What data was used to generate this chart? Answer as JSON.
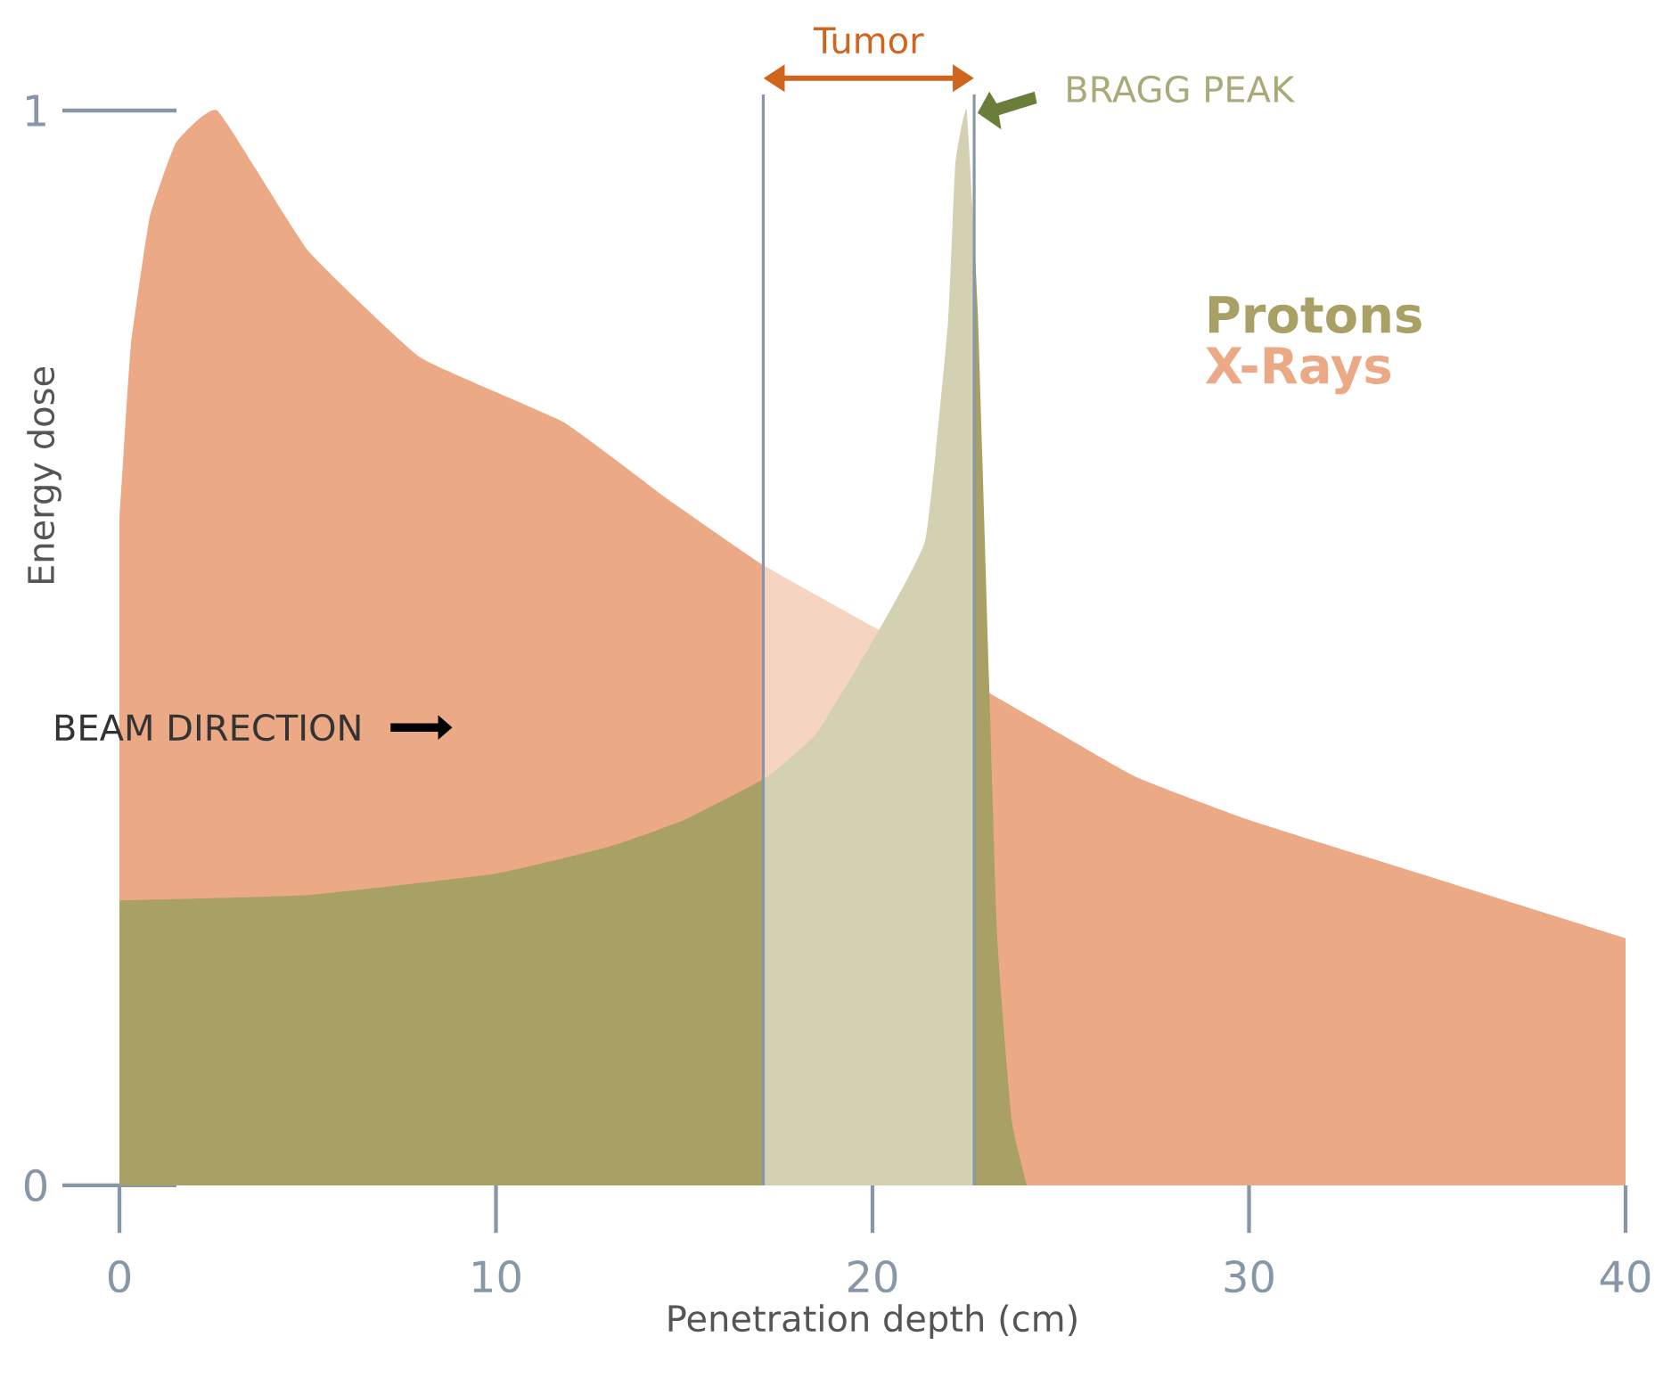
{
  "chart_data": {
    "type": "area",
    "xlabel": "Penetration depth (cm)",
    "ylabel": "Energy dose",
    "xlim": [
      0,
      40
    ],
    "xticks": [
      0,
      10,
      20,
      30,
      40
    ],
    "ylim": [
      0,
      1
    ],
    "yticks": [
      0,
      1
    ],
    "grid": false,
    "legend": "right",
    "series": [
      {
        "name": "X-Rays",
        "color": "#eba985",
        "x": [
          0,
          0.3,
          0.8,
          1.5,
          2.6,
          5,
          8,
          11.8,
          14.5,
          17.1,
          20,
          24.5,
          27,
          30,
          35,
          40
        ],
        "values": [
          0.62,
          0.78,
          0.9,
          0.97,
          1.0,
          0.87,
          0.77,
          0.71,
          0.64,
          0.577,
          0.52,
          0.43,
          0.38,
          0.34,
          0.285,
          0.23
        ]
      },
      {
        "name": "Protons",
        "color": "#a8a064",
        "x": [
          0,
          5,
          10,
          13,
          15,
          17.2,
          18.5,
          19.9,
          21.4,
          22.0,
          22.2,
          22.5,
          22.8,
          23.3,
          23.7,
          24.1
        ],
        "values": [
          0.265,
          0.27,
          0.29,
          0.315,
          0.34,
          0.38,
          0.42,
          0.5,
          0.6,
          0.8,
          0.95,
          1.0,
          0.81,
          0.24,
          0.06,
          0
        ]
      }
    ],
    "ref_lines": [
      {
        "axis": "x",
        "value": 17.1,
        "color": "#8797a8"
      },
      {
        "axis": "x",
        "value": 22.7,
        "color": "#8797a8"
      }
    ],
    "bands": [
      {
        "axis": "x",
        "from": 17.1,
        "to": 22.7,
        "label": "Tumor",
        "color": "#ffffff"
      }
    ],
    "annotations": [
      {
        "text": "BRAGG PEAK",
        "x": 22.6,
        "y": 1
      },
      "BEAM DIRECTION"
    ]
  }
}
